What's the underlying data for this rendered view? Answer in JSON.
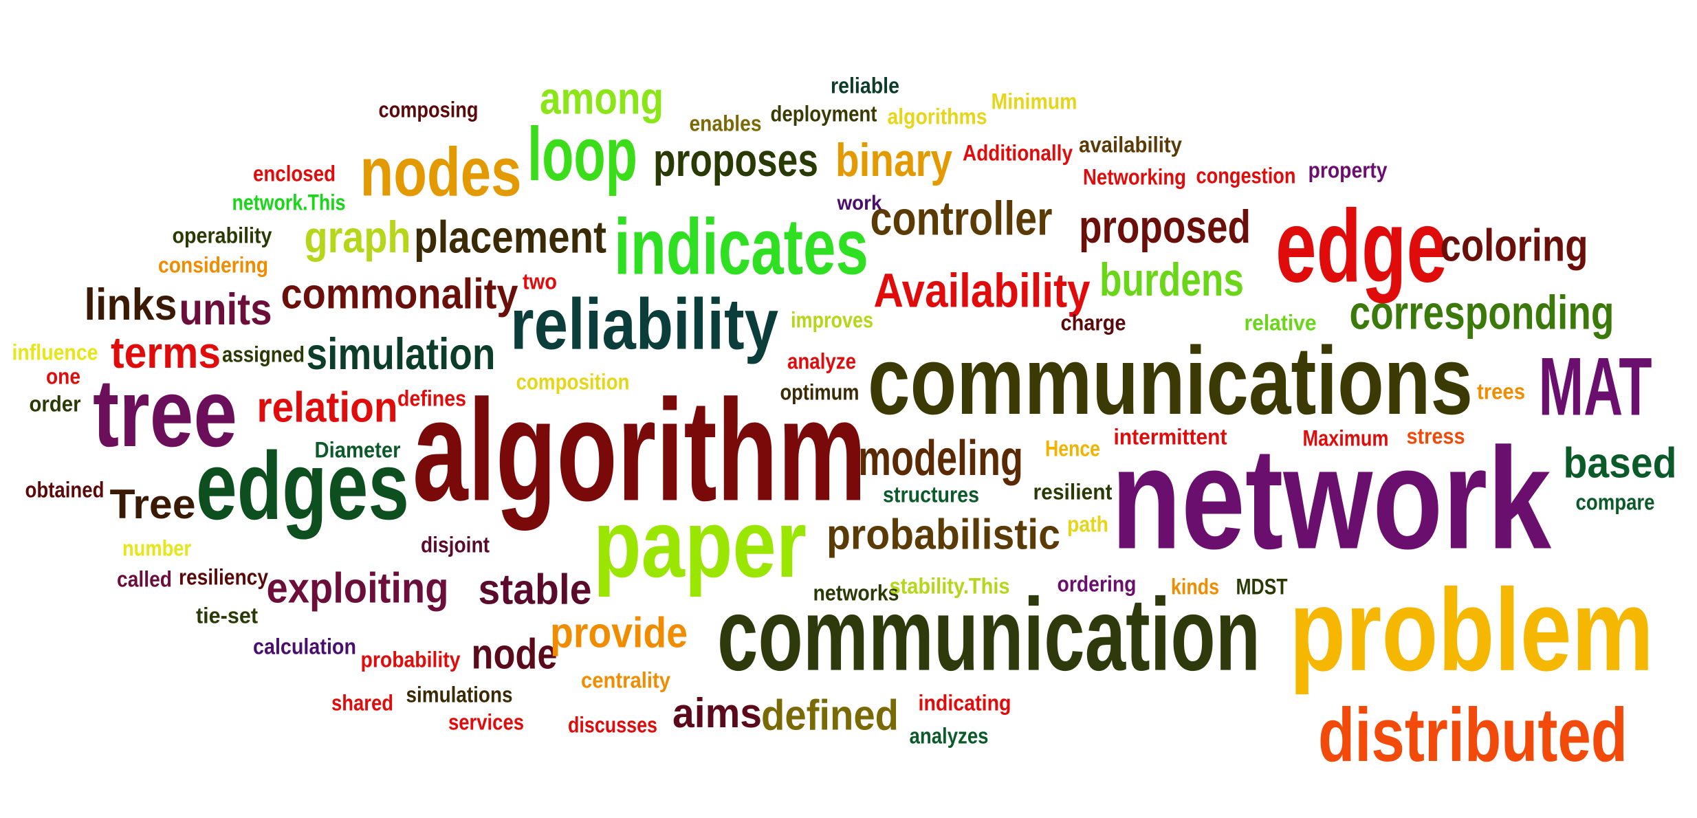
{
  "word_cloud": {
    "words": [
      {
        "text": "network",
        "color": "#6b0f6e"
      },
      {
        "text": "algorithm",
        "color": "#7a0a0a"
      },
      {
        "text": "communication",
        "color": "#2f3a0c"
      },
      {
        "text": "communications",
        "color": "#3b3a05"
      },
      {
        "text": "problem",
        "color": "#f5b700"
      },
      {
        "text": "edges",
        "color": "#0d4f1e"
      },
      {
        "text": "tree",
        "color": "#6b0f5a"
      },
      {
        "text": "edge",
        "color": "#e00b0b"
      },
      {
        "text": "paper",
        "color": "#9be600"
      },
      {
        "text": "reliability",
        "color": "#0b3d3a"
      },
      {
        "text": "indicates",
        "color": "#2fe022"
      },
      {
        "text": "loop",
        "color": "#3bdc19"
      },
      {
        "text": "nodes",
        "color": "#e39a00"
      },
      {
        "text": "MAT",
        "color": "#6b0f6e"
      },
      {
        "text": "distributed",
        "color": "#f24a0b"
      },
      {
        "text": "probabilistic",
        "color": "#5a3a05"
      },
      {
        "text": "modeling",
        "color": "#5a2a05"
      },
      {
        "text": "exploiting",
        "color": "#6b0f3a"
      },
      {
        "text": "stable",
        "color": "#5a0a2a"
      },
      {
        "text": "relation",
        "color": "#e00b0b"
      },
      {
        "text": "Availability",
        "color": "#e00b0b"
      },
      {
        "text": "placement",
        "color": "#3a2a05"
      },
      {
        "text": "commonality",
        "color": "#6b0f0a"
      },
      {
        "text": "simulation",
        "color": "#0b3d2a"
      },
      {
        "text": "corresponding",
        "color": "#3b7a0a"
      },
      {
        "text": "controller",
        "color": "#5a3a05"
      },
      {
        "text": "proposed",
        "color": "#6b0f0a"
      },
      {
        "text": "proposes",
        "color": "#2a3a05"
      },
      {
        "text": "binary",
        "color": "#e39a00"
      },
      {
        "text": "among",
        "color": "#8be619"
      },
      {
        "text": "coloring",
        "color": "#6b0f0a"
      },
      {
        "text": "burdens",
        "color": "#6bd619"
      },
      {
        "text": "graph",
        "color": "#b5d619"
      },
      {
        "text": "links",
        "color": "#3a1a05"
      },
      {
        "text": "units",
        "color": "#6b0f3a"
      },
      {
        "text": "terms",
        "color": "#e00b0b"
      },
      {
        "text": "Tree",
        "color": "#3a1a05"
      },
      {
        "text": "based",
        "color": "#0b5a2a"
      },
      {
        "text": "node",
        "color": "#5a0a1a"
      },
      {
        "text": "provide",
        "color": "#f08c00"
      },
      {
        "text": "aims",
        "color": "#5a0a1a"
      },
      {
        "text": "defined",
        "color": "#7a6a05"
      },
      {
        "text": "reliable",
        "color": "#0b3d2a"
      },
      {
        "text": "composing",
        "color": "#5a0a0a"
      },
      {
        "text": "enables",
        "color": "#7a6a05"
      },
      {
        "text": "deployment",
        "color": "#3a3a05"
      },
      {
        "text": "algorithms",
        "color": "#e6d619"
      },
      {
        "text": "Minimum",
        "color": "#e6d619"
      },
      {
        "text": "Additionally",
        "color": "#e00b0b"
      },
      {
        "text": "availability",
        "color": "#5a3a05"
      },
      {
        "text": "Networking",
        "color": "#e00b0b"
      },
      {
        "text": "congestion",
        "color": "#e00b0b"
      },
      {
        "text": "property",
        "color": "#6b0f6e"
      },
      {
        "text": "enclosed",
        "color": "#e00b0b"
      },
      {
        "text": "network.This",
        "color": "#19d619"
      },
      {
        "text": "work",
        "color": "#4a0f6e"
      },
      {
        "text": "operability",
        "color": "#2a3a05"
      },
      {
        "text": "considering",
        "color": "#f08c00"
      },
      {
        "text": "two",
        "color": "#e00b0b"
      },
      {
        "text": "improves",
        "color": "#b5d619"
      },
      {
        "text": "charge",
        "color": "#5a0a0a"
      },
      {
        "text": "relative",
        "color": "#6bd619"
      },
      {
        "text": "influence",
        "color": "#e6e619"
      },
      {
        "text": "assigned",
        "color": "#2a3a05"
      },
      {
        "text": "one",
        "color": "#e00b0b"
      },
      {
        "text": "order",
        "color": "#2a3a05"
      },
      {
        "text": "composition",
        "color": "#e6d619"
      },
      {
        "text": "analyze",
        "color": "#e00b0b"
      },
      {
        "text": "optimum",
        "color": "#3a2a05"
      },
      {
        "text": "defines",
        "color": "#e00b0b"
      },
      {
        "text": "trees",
        "color": "#f08c00"
      },
      {
        "text": "Diameter",
        "color": "#0b5a2a"
      },
      {
        "text": "Hence",
        "color": "#f0b400"
      },
      {
        "text": "intermittent",
        "color": "#e00b0b"
      },
      {
        "text": "Maximum",
        "color": "#e00b0b"
      },
      {
        "text": "stress",
        "color": "#f04a0b"
      },
      {
        "text": "obtained",
        "color": "#5a0a0a"
      },
      {
        "text": "structures",
        "color": "#0b5a2a"
      },
      {
        "text": "resilient",
        "color": "#2a3a05"
      },
      {
        "text": "compare",
        "color": "#0b5a2a"
      },
      {
        "text": "number",
        "color": "#e6e619"
      },
      {
        "text": "path",
        "color": "#e6d619"
      },
      {
        "text": "disjoint",
        "color": "#5a0a2a"
      },
      {
        "text": "called",
        "color": "#6b0f3a"
      },
      {
        "text": "resiliency",
        "color": "#5a0a0a"
      },
      {
        "text": "networks",
        "color": "#2a3a05"
      },
      {
        "text": "stability.This",
        "color": "#b5d619"
      },
      {
        "text": "ordering",
        "color": "#6b0f6e"
      },
      {
        "text": "kinds",
        "color": "#f08c00"
      },
      {
        "text": "MDST",
        "color": "#2a3a05"
      },
      {
        "text": "tie-set",
        "color": "#2a3a05"
      },
      {
        "text": "calculation",
        "color": "#4a0f6e"
      },
      {
        "text": "probability",
        "color": "#e00b0b"
      },
      {
        "text": "centrality",
        "color": "#f08c00"
      },
      {
        "text": "shared",
        "color": "#e00b0b"
      },
      {
        "text": "simulations",
        "color": "#3a2a05"
      },
      {
        "text": "services",
        "color": "#e00b0b"
      },
      {
        "text": "discusses",
        "color": "#e00b0b"
      },
      {
        "text": "indicating",
        "color": "#e00b0b"
      },
      {
        "text": "analyzes",
        "color": "#0b5a2a"
      }
    ]
  }
}
